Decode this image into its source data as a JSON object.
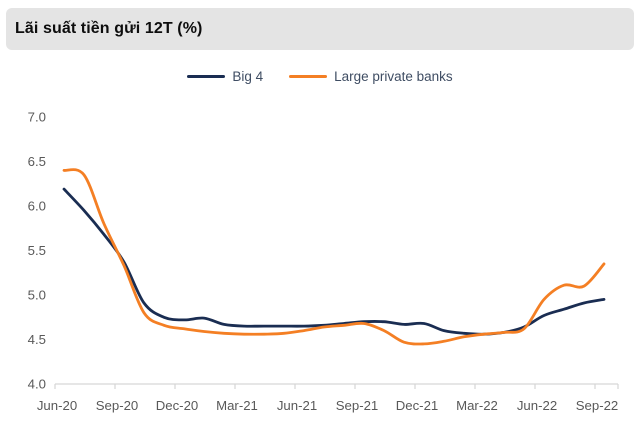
{
  "header": {
    "title": "Lãi suất tiền gửi 12T (%)"
  },
  "legend": [
    {
      "label": "Big 4",
      "color": "#1a2d52"
    },
    {
      "label": "Large private banks",
      "color": "#f47f24"
    }
  ],
  "chart_data": {
    "type": "line",
    "title": "Lãi suất tiền gửi 12T (%)",
    "x": [
      "Jun-20",
      "Jul-20",
      "Aug-20",
      "Sep-20",
      "Oct-20",
      "Nov-20",
      "Dec-20",
      "Jan-21",
      "Feb-21",
      "Mar-21",
      "Apr-21",
      "May-21",
      "Jun-21",
      "Jul-21",
      "Aug-21",
      "Sep-21",
      "Oct-21",
      "Nov-21",
      "Dec-21",
      "Jan-22",
      "Feb-22",
      "Mar-22",
      "Apr-22",
      "May-22",
      "Jun-22",
      "Jul-22",
      "Aug-22",
      "Sep-22"
    ],
    "x_tick_labels": [
      "Jun-20",
      "Sep-20",
      "Dec-20",
      "Mar-21",
      "Jun-21",
      "Sep-21",
      "Dec-21",
      "Mar-22",
      "Jun-22",
      "Sep-22"
    ],
    "series": [
      {
        "name": "Big 4",
        "color": "#1a2d52",
        "values": [
          6.19,
          5.95,
          5.68,
          5.37,
          4.91,
          4.75,
          4.72,
          4.74,
          4.67,
          4.65,
          4.65,
          4.65,
          4.65,
          4.66,
          4.68,
          4.7,
          4.7,
          4.67,
          4.68,
          4.6,
          4.57,
          4.56,
          4.58,
          4.64,
          4.77,
          4.84,
          4.91,
          4.95
        ]
      },
      {
        "name": "Large private banks",
        "color": "#f47f24",
        "values": [
          6.4,
          6.35,
          5.8,
          5.33,
          4.8,
          4.66,
          4.62,
          4.59,
          4.57,
          4.56,
          4.56,
          4.57,
          4.6,
          4.64,
          4.66,
          4.68,
          4.6,
          4.47,
          4.45,
          4.48,
          4.53,
          4.56,
          4.58,
          4.62,
          4.95,
          5.11,
          5.1,
          5.35
        ]
      }
    ],
    "ylim": [
      4.0,
      7.0
    ],
    "yticks": [
      4.0,
      4.5,
      5.0,
      5.5,
      6.0,
      6.5,
      7.0
    ],
    "ytick_labels": [
      "4.0",
      "4.5",
      "5.0",
      "5.5",
      "6.0",
      "6.5",
      "7.0"
    ],
    "grid": false,
    "legend_position": "top",
    "xlabel": "",
    "ylabel": "",
    "axis_color": "#d6d6d6",
    "tick_text_color": "#595959",
    "smooth": true
  }
}
